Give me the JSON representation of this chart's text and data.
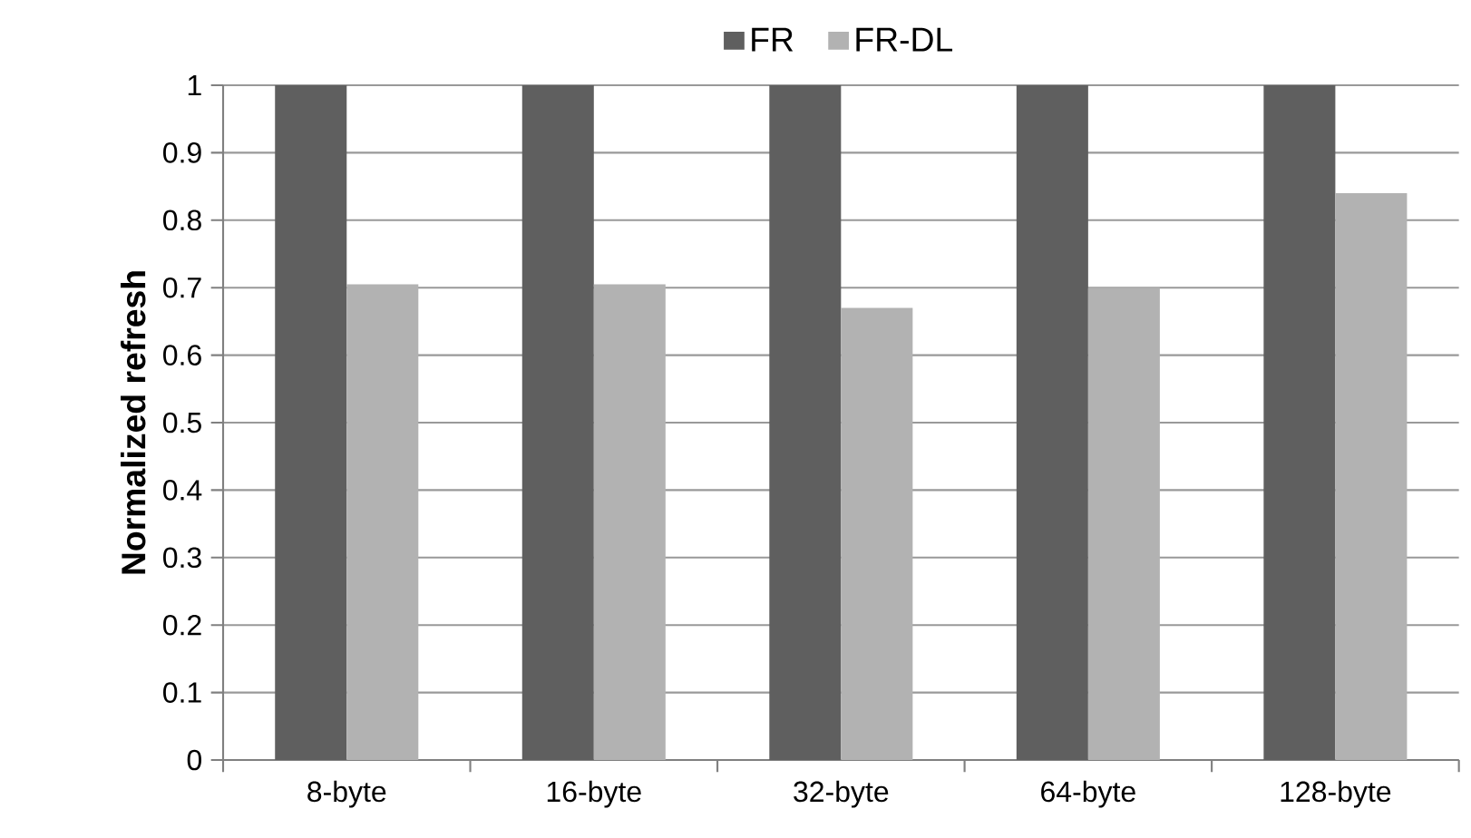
{
  "chart_data": {
    "type": "bar",
    "ylabel": "Normalized refresh",
    "categories": [
      "8-byte",
      "16-byte",
      "32-byte",
      "64-byte",
      "128-byte"
    ],
    "series": [
      {
        "name": "FR",
        "color": "#5f5f5f",
        "values": [
          1,
          1,
          1,
          1,
          1
        ]
      },
      {
        "name": "FR-DL",
        "color": "#b2b2b2",
        "values": [
          0.705,
          0.705,
          0.67,
          0.7,
          0.84
        ]
      }
    ],
    "ylim": [
      0,
      1
    ],
    "yticks": [
      0,
      0.1,
      0.2,
      0.3,
      0.4,
      0.5,
      0.6,
      0.7,
      0.8,
      0.9,
      1
    ],
    "grid": "y",
    "legend": "top"
  }
}
